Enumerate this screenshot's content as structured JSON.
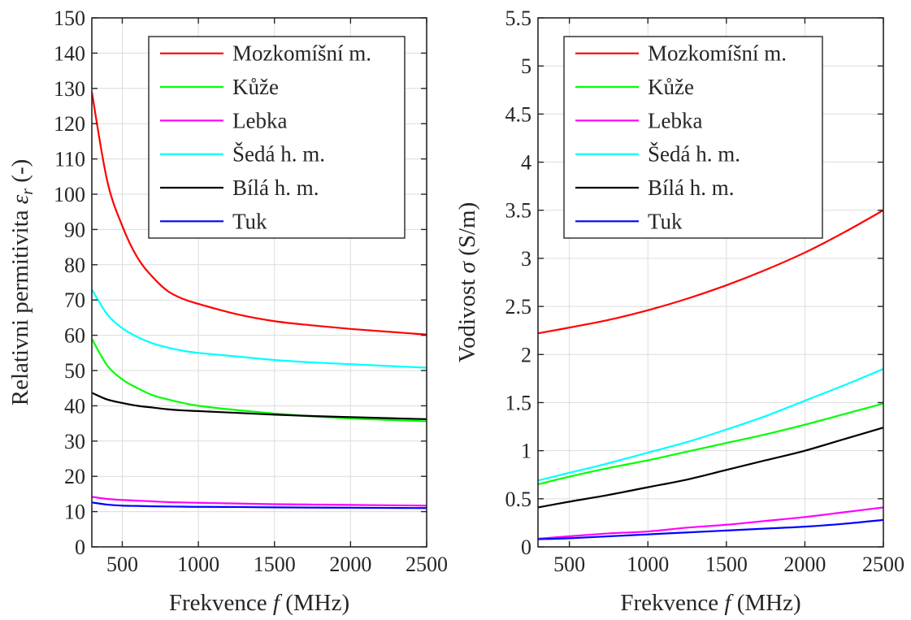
{
  "chart_data": [
    {
      "type": "line",
      "xlabel": "Frekvence f (MHz)",
      "ylabel": "Relativni permitivita ε_r (-)",
      "xlim": [
        300,
        2500
      ],
      "ylim": [
        0,
        150
      ],
      "xticks": [
        500,
        1000,
        1500,
        2000,
        2500
      ],
      "yticks": [
        0,
        10,
        20,
        30,
        40,
        50,
        60,
        70,
        80,
        90,
        100,
        110,
        120,
        130,
        140,
        150
      ],
      "grid": true,
      "legend": "top-right",
      "x": [
        300,
        400,
        500,
        600,
        700,
        800,
        900,
        1000,
        1250,
        1500,
        1750,
        2000,
        2250,
        2500
      ],
      "series": [
        {
          "name": "Mozkomíšní m.",
          "color": "#ff0000",
          "values": [
            129,
            104,
            91,
            82,
            76.5,
            72.5,
            70.3,
            68.9,
            66,
            64,
            62.8,
            61.8,
            61,
            60.2
          ]
        },
        {
          "name": "Kůže",
          "color": "#00ff00",
          "values": [
            59,
            51.5,
            47.5,
            45,
            43,
            41.8,
            40.8,
            40,
            38.8,
            37.8,
            37,
            36.4,
            36,
            35.6
          ]
        },
        {
          "name": "Lebka",
          "color": "#ff00ff",
          "values": [
            14.2,
            13.6,
            13.3,
            13.1,
            12.9,
            12.7,
            12.6,
            12.5,
            12.3,
            12.1,
            12,
            11.9,
            11.8,
            11.7
          ]
        },
        {
          "name": "Šedá h. m.",
          "color": "#00ffff",
          "values": [
            73,
            66,
            62,
            59.5,
            57.7,
            56.5,
            55.6,
            55,
            54,
            53,
            52.3,
            51.8,
            51.3,
            50.8
          ]
        },
        {
          "name": "Bílá h. m.",
          "color": "#000000",
          "values": [
            43.7,
            41.8,
            40.8,
            40,
            39.5,
            39,
            38.7,
            38.5,
            38,
            37.5,
            37.1,
            36.8,
            36.5,
            36.2
          ]
        },
        {
          "name": "Tuk",
          "color": "#0000ff",
          "values": [
            12.6,
            12,
            11.7,
            11.6,
            11.5,
            11.45,
            11.4,
            11.35,
            11.3,
            11.2,
            11.15,
            11.1,
            11.05,
            11
          ]
        }
      ]
    },
    {
      "type": "line",
      "xlabel": "Frekvence f (MHz)",
      "ylabel": "Vodivost σ (S/m)",
      "xlim": [
        300,
        2500
      ],
      "ylim": [
        0,
        5.5
      ],
      "xticks": [
        500,
        1000,
        1500,
        2000,
        2500
      ],
      "yticks": [
        0,
        0.5,
        1,
        1.5,
        2,
        2.5,
        3,
        3.5,
        4,
        4.5,
        5,
        5.5
      ],
      "grid": true,
      "legend": "top-right",
      "x": [
        300,
        500,
        750,
        1000,
        1250,
        1500,
        1750,
        2000,
        2250,
        2500
      ],
      "series": [
        {
          "name": "Mozkomíšní m.",
          "color": "#ff0000",
          "values": [
            2.22,
            2.28,
            2.36,
            2.46,
            2.58,
            2.72,
            2.88,
            3.06,
            3.27,
            3.5
          ]
        },
        {
          "name": "Kůže",
          "color": "#00ff00",
          "values": [
            0.65,
            0.73,
            0.82,
            0.9,
            0.99,
            1.08,
            1.17,
            1.27,
            1.38,
            1.49
          ]
        },
        {
          "name": "Lebka",
          "color": "#ff00ff",
          "values": [
            0.085,
            0.11,
            0.14,
            0.16,
            0.2,
            0.23,
            0.27,
            0.31,
            0.36,
            0.41
          ]
        },
        {
          "name": "Šedá h. m.",
          "color": "#00ffff",
          "values": [
            0.69,
            0.77,
            0.87,
            0.98,
            1.09,
            1.22,
            1.36,
            1.52,
            1.68,
            1.85
          ]
        },
        {
          "name": "Bílá h. m.",
          "color": "#000000",
          "values": [
            0.41,
            0.47,
            0.54,
            0.62,
            0.7,
            0.8,
            0.9,
            1.0,
            1.12,
            1.24
          ]
        },
        {
          "name": "Tuk",
          "color": "#0000ff",
          "values": [
            0.08,
            0.09,
            0.11,
            0.13,
            0.15,
            0.17,
            0.19,
            0.21,
            0.24,
            0.28
          ]
        }
      ]
    }
  ]
}
